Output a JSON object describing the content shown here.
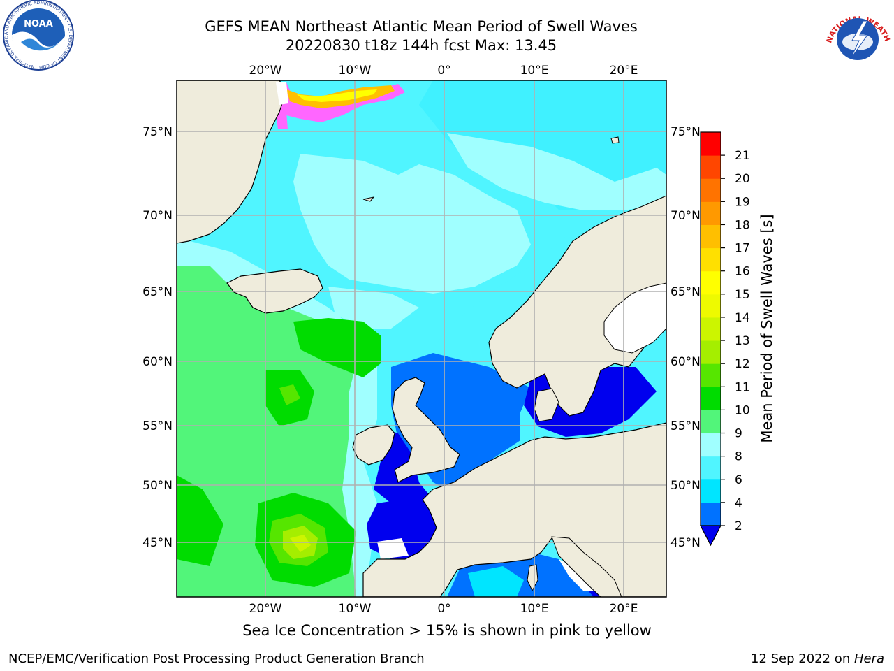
{
  "title_line1": "GEFS MEAN Northeast Atlantic Mean Period of Swell Waves",
  "title_line2": "20220830 t18z 144h fcst   Max: 13.45",
  "bottom_note": "Sea Ice Concentration > 15% is shown in pink to yellow",
  "footer_left": "NCEP/EMC/Verification Post Processing Product Generation Branch",
  "footer_right_date": "12 Sep 2022 on ",
  "footer_right_machine": "Hera",
  "logos": {
    "left": "noaa-logo",
    "right": "nws-logo"
  },
  "logo_text": {
    "noaa": "NOAA",
    "noaa_ring": "NATIONAL OCEANIC AND ATMOSPHERIC ADMINISTRATION • U.S. DEPARTMENT OF COMMERCE",
    "nws_ring": "NATIONAL WEATHER SERVICE"
  },
  "map": {
    "lon_labels": [
      "20°W",
      "10°W",
      "0°",
      "10°E",
      "20°E"
    ],
    "lat_labels": [
      "75°N",
      "70°N",
      "65°N",
      "60°N",
      "55°N",
      "50°N",
      "45°N"
    ],
    "grid": true,
    "colors": {
      "land": "#efecdc",
      "grid": "#b0b0b0"
    }
  },
  "colorbar": {
    "label": "Mean Period of Swell Waves [s]",
    "ticks": [
      "2",
      "4",
      "6",
      "8",
      "9",
      "10",
      "11",
      "12",
      "13",
      "14",
      "15",
      "16",
      "17",
      "18",
      "19",
      "20",
      "21"
    ],
    "colors": [
      "#0072ff",
      "#00e5ff",
      "#50f5ff",
      "#a0ffff",
      "#52f57a",
      "#00dc00",
      "#56e600",
      "#a5ee00",
      "#ccf500",
      "#eefa00",
      "#ffff00",
      "#ffe000",
      "#ffbf00",
      "#ff9900",
      "#ff7300",
      "#ff4600",
      "#ff0000"
    ],
    "under_color": "#0000ee",
    "extend": "min"
  }
}
